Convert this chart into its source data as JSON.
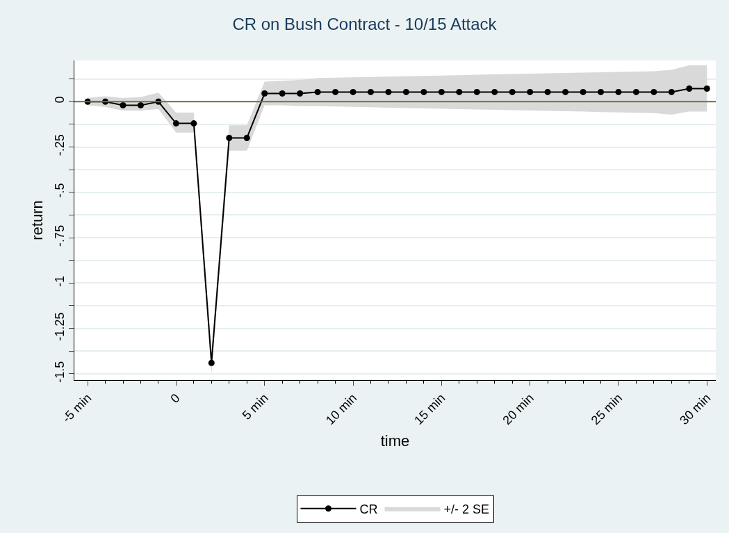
{
  "chart_data": {
    "type": "line",
    "title": "CR on Bush Contract - 10/15 Attack",
    "xlabel": "time",
    "ylabel": "return",
    "x": [
      -5,
      -4,
      -3,
      -2,
      -1,
      0,
      1,
      2,
      3,
      4,
      5,
      6,
      7,
      8,
      9,
      10,
      11,
      12,
      13,
      14,
      15,
      16,
      17,
      18,
      19,
      20,
      21,
      22,
      23,
      24,
      25,
      26,
      27,
      28,
      29,
      30
    ],
    "series": [
      {
        "name": "CR",
        "color": "#000000",
        "marker": "circle",
        "values": [
          0,
          0,
          -0.02,
          -0.02,
          0,
          -0.12,
          -0.12,
          -1.44,
          -0.2,
          -0.2,
          0.045,
          0.045,
          0.045,
          0.053,
          0.053,
          0.053,
          0.053,
          0.053,
          0.053,
          0.053,
          0.053,
          0.053,
          0.053,
          0.053,
          0.053,
          0.053,
          0.053,
          0.053,
          0.053,
          0.053,
          0.053,
          0.053,
          0.053,
          0.053,
          0.072,
          0.072
        ]
      },
      {
        "name": "+/- 2 SE",
        "type": "area",
        "color": "#d9d9d9",
        "values": [
          null,
          null,
          null,
          null,
          null,
          null,
          null,
          null,
          null,
          null,
          null,
          null,
          null,
          null,
          null,
          null,
          null,
          null,
          null,
          null,
          null,
          null,
          null,
          null,
          null,
          null,
          null,
          null,
          null,
          null,
          null,
          null,
          null,
          null,
          null,
          null
        ],
        "lower": [
          -0.02,
          -0.03,
          -0.05,
          -0.05,
          -0.04,
          -0.17,
          -0.17,
          -1.5,
          -0.27,
          -0.27,
          -0.02,
          -0.02,
          -0.025,
          -0.025,
          -0.027,
          -0.029,
          -0.031,
          -0.033,
          -0.035,
          -0.037,
          -0.039,
          -0.041,
          -0.043,
          -0.045,
          -0.047,
          -0.049,
          -0.051,
          -0.053,
          -0.055,
          -0.057,
          -0.059,
          -0.061,
          -0.063,
          -0.072,
          -0.055,
          -0.055
        ],
        "upper": [
          0.02,
          0.03,
          0.02,
          0.025,
          0.05,
          -0.06,
          -0.06,
          -1.37,
          -0.13,
          -0.13,
          0.11,
          0.115,
          0.12,
          0.13,
          0.132,
          0.134,
          0.136,
          0.138,
          0.14,
          0.142,
          0.144,
          0.146,
          0.148,
          0.15,
          0.152,
          0.154,
          0.156,
          0.158,
          0.16,
          0.162,
          0.164,
          0.166,
          0.168,
          0.175,
          0.2,
          0.2
        ]
      }
    ],
    "xlim": [
      -5.75,
      30.5
    ],
    "xticks": [
      {
        "value": -5,
        "label": "-5 min"
      },
      0,
      {
        "value": 5,
        "label": "5 min"
      },
      {
        "value": 10,
        "label": "10 min"
      },
      {
        "value": 15,
        "label": "15 min"
      },
      {
        "value": 20,
        "label": "20 min"
      },
      {
        "value": 25,
        "label": "25 min"
      },
      {
        "value": 30,
        "label": "30 min"
      }
    ],
    "ylim": [
      -1.535,
      0.227
    ],
    "yticks": [
      {
        "value": -1.5,
        "label": "-1.5"
      },
      {
        "value": -1.375,
        "label": null
      },
      {
        "value": -1.25,
        "label": "-1.25"
      },
      {
        "value": -1.125,
        "label": null
      },
      {
        "value": -1,
        "label": "-1"
      },
      {
        "value": -0.875,
        "label": null
      },
      {
        "value": -0.75,
        "label": "-.75"
      },
      {
        "value": -0.625,
        "label": null
      },
      {
        "value": -0.5,
        "label": "-.5"
      },
      {
        "value": -0.375,
        "label": null
      },
      {
        "value": -0.25,
        "label": "-.25"
      },
      {
        "value": -0.125,
        "label": null
      },
      0,
      {
        "value": 0.125,
        "label": null
      }
    ],
    "ref_lines": [
      {
        "axis": "y",
        "value": 0,
        "color": "#5b7f2f"
      }
    ],
    "grid": "y",
    "legend": "bottom"
  }
}
